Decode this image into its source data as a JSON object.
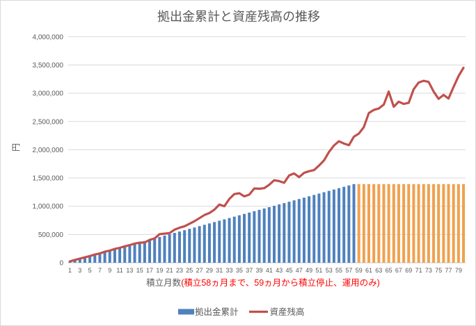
{
  "chart_data": {
    "type": "combo-bar-line",
    "title": "拠出金累計と資産残高の推移",
    "y_axis_title": "円",
    "x_axis_title_main": "積立月数",
    "x_axis_title_note": "(積立58ヵ月まで、59ヵ月から積立停止、運用のみ)",
    "ylim": [
      0,
      4000000
    ],
    "grid": true,
    "legend_position": "bottom",
    "y_tick_values": [
      0,
      500000,
      1000000,
      1500000,
      2000000,
      2500000,
      3000000,
      3500000,
      4000000
    ],
    "y_tick_labels": [
      "0",
      "500,000",
      "1,000,000",
      "1,500,000",
      "2,000,000",
      "2,500,000",
      "3,000,000",
      "3,500,000",
      "4,000,000"
    ],
    "x_tick_labels": [
      "1",
      "3",
      "5",
      "7",
      "9",
      "11",
      "13",
      "15",
      "17",
      "19",
      "21",
      "23",
      "25",
      "27",
      "29",
      "31",
      "33",
      "35",
      "37",
      "39",
      "41",
      "43",
      "45",
      "47",
      "49",
      "51",
      "53",
      "55",
      "57",
      "59",
      "61",
      "63",
      "65",
      "67",
      "69",
      "71",
      "73",
      "75",
      "77",
      "79"
    ],
    "months": 80,
    "contribution_stop_month": 59,
    "series": [
      {
        "name": "拠出金累計",
        "type": "bar",
        "color_active": "#4f81bd",
        "color_stopped": "#f0a14f",
        "values": [
          24000,
          48000,
          72000,
          96000,
          120000,
          144000,
          168000,
          192000,
          216000,
          240000,
          264000,
          288000,
          312000,
          336000,
          360000,
          384000,
          408000,
          432000,
          456000,
          480000,
          504000,
          528000,
          552000,
          576000,
          600000,
          624000,
          648000,
          672000,
          696000,
          720000,
          744000,
          768000,
          792000,
          816000,
          840000,
          864000,
          888000,
          912000,
          936000,
          960000,
          984000,
          1008000,
          1032000,
          1056000,
          1080000,
          1104000,
          1128000,
          1152000,
          1176000,
          1200000,
          1224000,
          1248000,
          1272000,
          1296000,
          1320000,
          1344000,
          1368000,
          1392000,
          1392000,
          1392000,
          1392000,
          1392000,
          1392000,
          1392000,
          1392000,
          1392000,
          1392000,
          1392000,
          1392000,
          1392000,
          1392000,
          1392000,
          1392000,
          1392000,
          1392000,
          1392000,
          1392000,
          1392000,
          1392000,
          1392000
        ]
      },
      {
        "name": "資産残高",
        "type": "line",
        "color": "#c0504d",
        "values": [
          24000,
          50000,
          72000,
          96000,
          118000,
          145000,
          165000,
          195000,
          215000,
          245000,
          265000,
          290000,
          312000,
          340000,
          355000,
          358000,
          405000,
          430000,
          505000,
          515000,
          525000,
          585000,
          620000,
          645000,
          690000,
          735000,
          790000,
          845000,
          880000,
          940000,
          1030000,
          1000000,
          1130000,
          1215000,
          1230000,
          1175000,
          1205000,
          1315000,
          1310000,
          1320000,
          1380000,
          1460000,
          1445000,
          1415000,
          1545000,
          1580000,
          1515000,
          1590000,
          1620000,
          1640000,
          1720000,
          1810000,
          1960000,
          2075000,
          2150000,
          2110000,
          2080000,
          2230000,
          2285000,
          2400000,
          2650000,
          2705000,
          2730000,
          2800000,
          3030000,
          2760000,
          2850000,
          2810000,
          2830000,
          3070000,
          3190000,
          3220000,
          3200000,
          3030000,
          2900000,
          2970000,
          2905000,
          3110000,
          3300000,
          3450000
        ]
      }
    ],
    "colors": {
      "gridline": "#d9d9d9",
      "axis_line": "#c6c6c6",
      "text": "#595959",
      "note_red": "#ff0000",
      "bar_blue": "#4f81bd",
      "bar_orange": "#f0a14f",
      "line_red": "#c0504d"
    }
  }
}
